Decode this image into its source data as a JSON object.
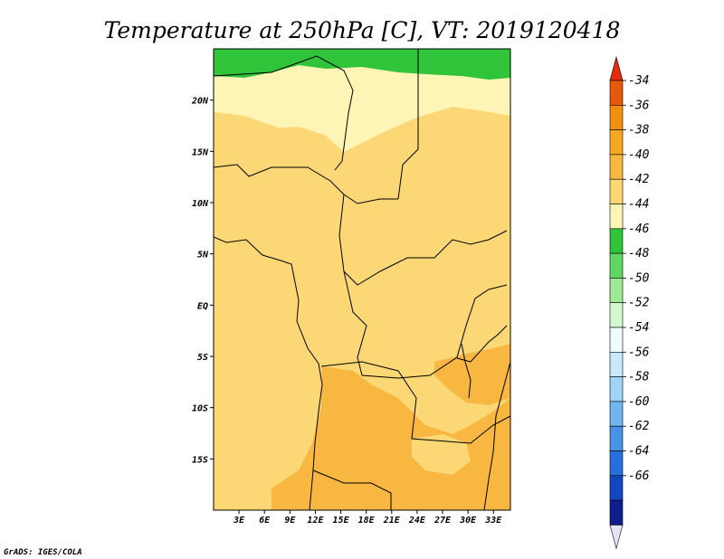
{
  "title": "Temperature at 250hPa [C], VT: 2019120418",
  "credit": "GrADS: IGES/COLA",
  "map": {
    "lon_range": [
      0,
      35
    ],
    "lat_range": [
      -20,
      25
    ],
    "lon_ticks": [
      "3E",
      "6E",
      "9E",
      "12E",
      "15E",
      "18E",
      "21E",
      "24E",
      "27E",
      "30E",
      "33E"
    ],
    "lat_ticks": [
      "20N",
      "15N",
      "10N",
      "5N",
      "EQ",
      "5S",
      "10S",
      "15S"
    ]
  },
  "colorbar": {
    "levels": [
      "-34",
      "-36",
      "-38",
      "-40",
      "-42",
      "-44",
      "-46",
      "-48",
      "-50",
      "-52",
      "-54",
      "-56",
      "-58",
      "-60",
      "-62",
      "-64",
      "-66"
    ],
    "colors": [
      "#e8580a",
      "#f28e10",
      "#f7a822",
      "#f8b740",
      "#fbd875",
      "#fdf5b5",
      "#2fc43a",
      "#5ed862",
      "#9eea94",
      "#d2f8d0",
      "#eefcfc",
      "#c7e9fb",
      "#9fd3f7",
      "#6fb5ef",
      "#4893e5",
      "#276fdc",
      "#1248bf",
      "#0c1f8a"
    ],
    "top_arrow_color": "#e82b0a",
    "bottom_arrow_color": "#e4e4f6"
  },
  "palette": {
    "minus42": "#fdf5b5",
    "minus40": "#fbd875",
    "minus38": "#f8b740",
    "minus44": "#2fc43a"
  }
}
